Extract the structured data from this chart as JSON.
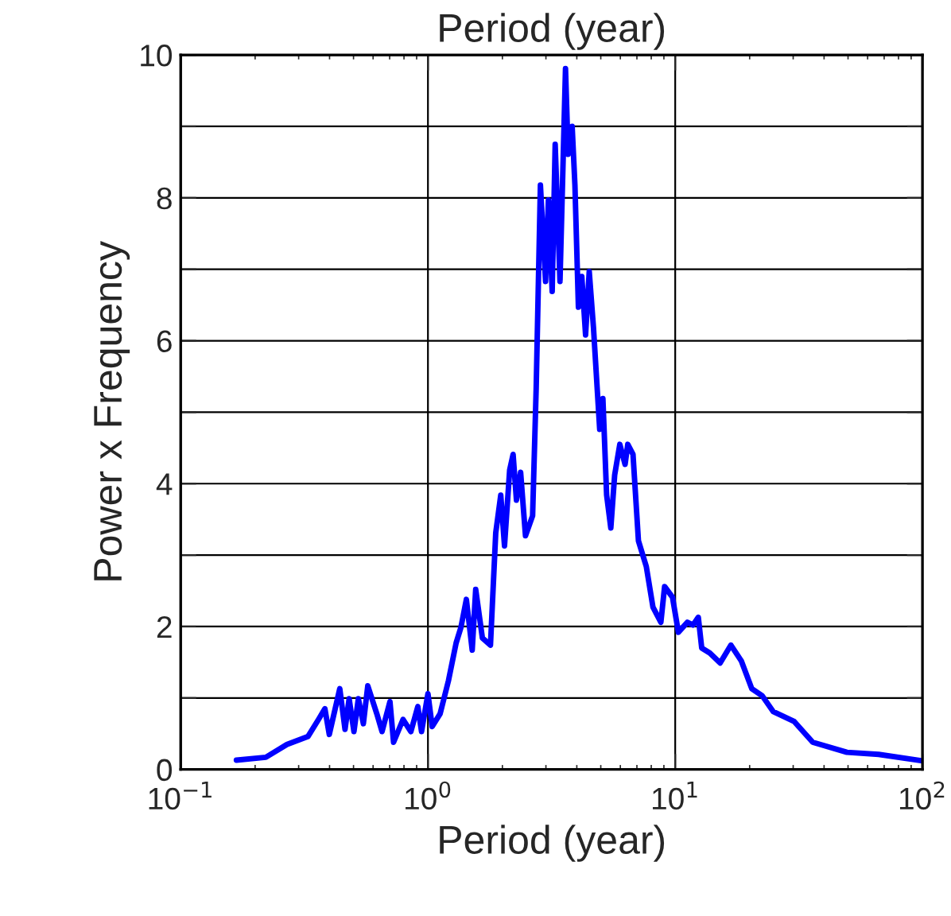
{
  "chart_data": {
    "type": "line",
    "title": "Period (year)",
    "xlabel": "Period (year)",
    "ylabel": "Power x Frequency",
    "log": "x",
    "grid": true,
    "marker": "none",
    "line_style": "solid",
    "xlim": [
      0.1,
      100
    ],
    "xticks": [
      {
        "value": 0.1,
        "label": "10$^{−1}$"
      },
      {
        "value": 1,
        "label": "10$^{0}$"
      },
      {
        "value": 10,
        "label": "10$^{1}$"
      },
      {
        "value": 100,
        "label": "10$^{2}$"
      }
    ],
    "ylim": [
      0,
      10
    ],
    "yticks": [
      0,
      {
        "value": 1,
        "label": null
      },
      2,
      {
        "value": 3,
        "label": null
      },
      4,
      {
        "value": 5,
        "label": null
      },
      6,
      {
        "value": 7,
        "label": null
      },
      8,
      {
        "value": 9,
        "label": null
      },
      10
    ],
    "series": [
      {
        "color": "#0000ff",
        "x": [
          0.168,
          0.221,
          0.269,
          0.327,
          0.361,
          0.383,
          0.399,
          0.44,
          0.462,
          0.48,
          0.502,
          0.523,
          0.548,
          0.571,
          0.621,
          0.652,
          0.702,
          0.726,
          0.793,
          0.853,
          0.91,
          0.942,
          1.0,
          1.04,
          1.12,
          1.21,
          1.3,
          1.36,
          1.43,
          1.51,
          1.56,
          1.66,
          1.79,
          1.88,
          1.97,
          2.04,
          2.14,
          2.21,
          2.28,
          2.37,
          2.48,
          2.65,
          2.74,
          2.85,
          2.99,
          3.07,
          3.18,
          3.27,
          3.42,
          3.6,
          3.69,
          3.83,
          3.93,
          4.06,
          4.19,
          4.34,
          4.49,
          4.67,
          4.95,
          5.1,
          5.28,
          5.49,
          5.69,
          5.97,
          6.27,
          6.43,
          6.75,
          7.1,
          7.64,
          8.13,
          8.75,
          9.06,
          9.75,
          10.3,
          11.2,
          11.8,
          12.4,
          12.8,
          13.8,
          15.2,
          16.8,
          18.5,
          20.4,
          22.5,
          24.9,
          30.3,
          36.0,
          49.5,
          66.5,
          100
        ],
        "values": [
          0.13,
          0.17,
          0.35,
          0.46,
          0.7,
          0.85,
          0.49,
          1.13,
          0.56,
          0.99,
          0.53,
          0.99,
          0.64,
          1.17,
          0.78,
          0.53,
          0.95,
          0.38,
          0.7,
          0.53,
          0.88,
          0.53,
          1.06,
          0.6,
          0.78,
          1.24,
          1.77,
          1.99,
          2.38,
          1.67,
          2.52,
          1.84,
          1.74,
          3.31,
          3.84,
          3.13,
          4.19,
          4.41,
          3.77,
          4.16,
          3.27,
          3.55,
          5.34,
          8.18,
          6.83,
          7.97,
          6.69,
          8.75,
          6.83,
          9.81,
          8.61,
          9.0,
          8.18,
          6.47,
          6.9,
          6.08,
          6.97,
          6.19,
          4.76,
          5.19,
          3.84,
          3.38,
          4.12,
          4.55,
          4.27,
          4.55,
          4.41,
          3.2,
          2.84,
          2.27,
          2.06,
          2.56,
          2.41,
          1.92,
          2.06,
          2.02,
          2.13,
          1.7,
          1.63,
          1.49,
          1.74,
          1.52,
          1.13,
          1.03,
          0.81,
          0.67,
          0.38,
          0.24,
          0.21,
          0.12
        ]
      }
    ]
  }
}
